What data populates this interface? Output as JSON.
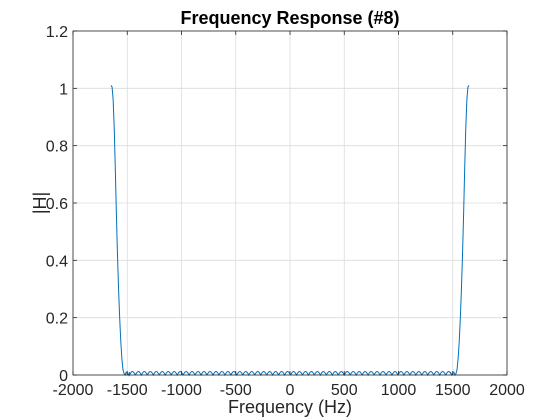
{
  "chart_data": {
    "type": "line",
    "title": "Frequency Response (#8)",
    "xlabel": "Frequency (Hz)",
    "ylabel": "|H|",
    "xlim": [
      -2000,
      2000
    ],
    "ylim": [
      0,
      1.2
    ],
    "xticks": [
      -2000,
      -1500,
      -1000,
      -500,
      0,
      500,
      1000,
      1500,
      2000
    ],
    "yticks": [
      0,
      0.2,
      0.4,
      0.6,
      0.8,
      1,
      1.2
    ],
    "xtick_labels": [
      "-2000",
      "-1500",
      "-1000",
      "-500",
      "0",
      "500",
      "1000",
      "1500",
      "2000"
    ],
    "ytick_labels": [
      "0",
      "0.2",
      "0.4",
      "0.6",
      "0.8",
      "1",
      "1.2"
    ],
    "grid": true,
    "line_color": "#0072bd",
    "series": [
      {
        "x": [
          -1650,
          -1640,
          -1630,
          -1620,
          -1610,
          -1600,
          -1590,
          -1580,
          -1570,
          -1560,
          -1550,
          -1540,
          -1530,
          -1520,
          -1510,
          -1500,
          -1490,
          -1480
        ],
        "y": [
          1.01,
          1.005,
          0.96,
          0.86,
          0.72,
          0.56,
          0.42,
          0.3,
          0.2,
          0.12,
          0.06,
          0.02,
          0.005,
          0.0,
          0.01,
          0.005,
          0.0,
          0.01
        ]
      },
      {
        "x": [
          1480,
          1490,
          1500,
          1510,
          1520,
          1530,
          1540,
          1550,
          1560,
          1570,
          1580,
          1590,
          1600,
          1610,
          1620,
          1630,
          1640,
          1650
        ],
        "y": [
          0.01,
          0.0,
          0.005,
          0.01,
          0.0,
          0.005,
          0.02,
          0.06,
          0.12,
          0.2,
          0.3,
          0.42,
          0.56,
          0.72,
          0.86,
          0.96,
          1.005,
          1.01
        ]
      }
    ],
    "stopband": {
      "x_start": -1480,
      "x_end": 1480,
      "ripple": 0.012,
      "period": 55
    }
  }
}
